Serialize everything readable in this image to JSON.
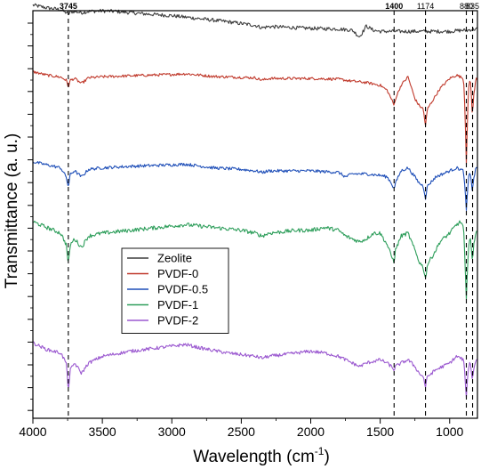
{
  "chart_data": {
    "type": "line",
    "xlabel_main": "Wavelength (cm",
    "xlabel_sup": "-1",
    "xlabel_end": ")",
    "ylabel": "Transmittance (a. u.)",
    "xlim": [
      4000,
      800
    ],
    "x_reversed": true,
    "x_ticks": [
      "4000",
      "3500",
      "3000",
      "2500",
      "2000",
      "1500",
      "1000"
    ],
    "x_tick_values": [
      4000,
      3500,
      3000,
      2500,
      2000,
      1500,
      1000
    ],
    "y_ticks_labeled": false,
    "grid": false,
    "legend_position": "center-left",
    "reference_lines": [
      {
        "x": 3745,
        "label": "3745",
        "bold": true
      },
      {
        "x": 1400,
        "label": "1400",
        "bold": true
      },
      {
        "x": 1174,
        "label": "1174",
        "bold": false
      },
      {
        "x": 880,
        "label": "880",
        "bold": false
      },
      {
        "x": 835,
        "label": "835",
        "bold": false
      }
    ],
    "series": [
      {
        "name": "Zeolite",
        "color": "#3c3c3c",
        "noise": 0.06,
        "points": [
          [
            4000,
            0.95
          ],
          [
            3900,
            0.86
          ],
          [
            3800,
            0.8
          ],
          [
            3760,
            0.7
          ],
          [
            3745,
            0.64
          ],
          [
            3730,
            0.72
          ],
          [
            3700,
            0.74
          ],
          [
            3650,
            0.7
          ],
          [
            3600,
            0.74
          ],
          [
            3500,
            0.76
          ],
          [
            3400,
            0.74
          ],
          [
            3300,
            0.7
          ],
          [
            3200,
            0.66
          ],
          [
            3000,
            0.6
          ],
          [
            2800,
            0.5
          ],
          [
            2600,
            0.4
          ],
          [
            2400,
            0.28
          ],
          [
            2350,
            0.2
          ],
          [
            2300,
            0.24
          ],
          [
            2200,
            0.22
          ],
          [
            2000,
            0.18
          ],
          [
            1800,
            0.16
          ],
          [
            1700,
            0.12
          ],
          [
            1650,
            -0.1
          ],
          [
            1620,
            0.1
          ],
          [
            1600,
            0.26
          ],
          [
            1580,
            0.2
          ],
          [
            1550,
            0.12
          ],
          [
            1500,
            0.08
          ],
          [
            1400,
            0.08
          ],
          [
            1300,
            0.08
          ],
          [
            1200,
            0.08
          ],
          [
            1100,
            0.08
          ],
          [
            1000,
            0.08
          ],
          [
            950,
            0.1
          ],
          [
            900,
            0.12
          ],
          [
            880,
            0.1
          ],
          [
            850,
            0.14
          ],
          [
            800,
            0.16
          ]
        ]
      },
      {
        "name": "PVDF-0",
        "color": "#c0392b",
        "noise": 0.04,
        "points": [
          [
            4000,
            0.3
          ],
          [
            3900,
            0.2
          ],
          [
            3800,
            0.14
          ],
          [
            3760,
            0.05
          ],
          [
            3745,
            -0.15
          ],
          [
            3730,
            0.05
          ],
          [
            3700,
            0.1
          ],
          [
            3650,
            -0.05
          ],
          [
            3620,
            0.05
          ],
          [
            3600,
            0.12
          ],
          [
            3500,
            0.15
          ],
          [
            3300,
            0.18
          ],
          [
            3000,
            0.22
          ],
          [
            2900,
            0.24
          ],
          [
            2700,
            0.16
          ],
          [
            2400,
            0.12
          ],
          [
            2350,
            0.05
          ],
          [
            2300,
            0.1
          ],
          [
            2000,
            0.1
          ],
          [
            1800,
            0.08
          ],
          [
            1700,
            0.02
          ],
          [
            1600,
            -0.02
          ],
          [
            1500,
            -0.1
          ],
          [
            1450,
            -0.25
          ],
          [
            1420,
            -0.5
          ],
          [
            1400,
            -0.7
          ],
          [
            1390,
            -0.5
          ],
          [
            1350,
            -0.1
          ],
          [
            1300,
            0.15
          ],
          [
            1250,
            -0.5
          ],
          [
            1220,
            -0.7
          ],
          [
            1190,
            -0.8
          ],
          [
            1174,
            -1.3
          ],
          [
            1160,
            -0.8
          ],
          [
            1100,
            -0.4
          ],
          [
            1070,
            -0.2
          ],
          [
            1000,
            0.1
          ],
          [
            950,
            0.2
          ],
          [
            900,
            0.1
          ],
          [
            890,
            -0.8
          ],
          [
            880,
            -2.4
          ],
          [
            870,
            -0.8
          ],
          [
            860,
            0.0
          ],
          [
            850,
            0.0
          ],
          [
            840,
            -0.7
          ],
          [
            835,
            -1.1
          ],
          [
            830,
            -0.5
          ],
          [
            810,
            0.1
          ],
          [
            800,
            0.1
          ]
        ]
      },
      {
        "name": "PVDF-0.5",
        "color": "#1f4fb8",
        "noise": 0.05,
        "points": [
          [
            4000,
            0.3
          ],
          [
            3900,
            0.2
          ],
          [
            3800,
            0.1
          ],
          [
            3760,
            -0.2
          ],
          [
            3745,
            -0.55
          ],
          [
            3730,
            -0.1
          ],
          [
            3700,
            0.0
          ],
          [
            3650,
            -0.2
          ],
          [
            3600,
            0.05
          ],
          [
            3500,
            0.1
          ],
          [
            3300,
            0.15
          ],
          [
            3000,
            0.2
          ],
          [
            2900,
            0.22
          ],
          [
            2700,
            0.1
          ],
          [
            2500,
            0.05
          ],
          [
            2400,
            0.0
          ],
          [
            2350,
            -0.05
          ],
          [
            2300,
            0.0
          ],
          [
            2000,
            0.0
          ],
          [
            1800,
            -0.05
          ],
          [
            1750,
            -0.2
          ],
          [
            1700,
            -0.1
          ],
          [
            1600,
            -0.1
          ],
          [
            1500,
            -0.15
          ],
          [
            1450,
            -0.2
          ],
          [
            1420,
            -0.4
          ],
          [
            1400,
            -0.6
          ],
          [
            1390,
            -0.4
          ],
          [
            1350,
            0.0
          ],
          [
            1300,
            0.1
          ],
          [
            1250,
            -0.2
          ],
          [
            1220,
            -0.4
          ],
          [
            1190,
            -0.5
          ],
          [
            1174,
            -0.9
          ],
          [
            1160,
            -0.5
          ],
          [
            1100,
            -0.2
          ],
          [
            1000,
            0.0
          ],
          [
            950,
            0.1
          ],
          [
            900,
            0.0
          ],
          [
            890,
            -0.6
          ],
          [
            880,
            -1.3
          ],
          [
            870,
            -0.6
          ],
          [
            860,
            -0.1
          ],
          [
            850,
            -0.1
          ],
          [
            840,
            -0.5
          ],
          [
            835,
            -0.8
          ],
          [
            830,
            -0.3
          ],
          [
            810,
            0.1
          ],
          [
            800,
            0.1
          ]
        ]
      },
      {
        "name": "PVDF-1",
        "color": "#2e9e5b",
        "noise": 0.07,
        "points": [
          [
            4000,
            0.4
          ],
          [
            3900,
            0.2
          ],
          [
            3800,
            0.0
          ],
          [
            3760,
            -0.4
          ],
          [
            3745,
            -1.1
          ],
          [
            3730,
            -0.4
          ],
          [
            3700,
            -0.2
          ],
          [
            3650,
            -0.5
          ],
          [
            3600,
            -0.1
          ],
          [
            3500,
            0.0
          ],
          [
            3300,
            0.1
          ],
          [
            3000,
            0.25
          ],
          [
            2900,
            0.3
          ],
          [
            2700,
            0.2
          ],
          [
            2500,
            0.1
          ],
          [
            2400,
            0.0
          ],
          [
            2350,
            -0.1
          ],
          [
            2300,
            0.0
          ],
          [
            2100,
            0.1
          ],
          [
            2000,
            0.1
          ],
          [
            1900,
            0.2
          ],
          [
            1800,
            0.1
          ],
          [
            1750,
            -0.1
          ],
          [
            1700,
            -0.2
          ],
          [
            1650,
            -0.3
          ],
          [
            1600,
            -0.2
          ],
          [
            1550,
            0.0
          ],
          [
            1500,
            0.0
          ],
          [
            1450,
            -0.4
          ],
          [
            1420,
            -0.8
          ],
          [
            1400,
            -1.0
          ],
          [
            1390,
            -0.6
          ],
          [
            1350,
            -0.1
          ],
          [
            1300,
            0.0
          ],
          [
            1250,
            -0.6
          ],
          [
            1220,
            -1.0
          ],
          [
            1190,
            -1.2
          ],
          [
            1174,
            -1.6
          ],
          [
            1160,
            -1.1
          ],
          [
            1100,
            -0.6
          ],
          [
            1070,
            -0.3
          ],
          [
            1000,
            0.0
          ],
          [
            950,
            0.3
          ],
          [
            920,
            0.4
          ],
          [
            900,
            0.2
          ],
          [
            890,
            -1.0
          ],
          [
            880,
            -2.4
          ],
          [
            870,
            -1.0
          ],
          [
            860,
            -0.2
          ],
          [
            850,
            -0.2
          ],
          [
            840,
            -0.8
          ],
          [
            835,
            -1.2
          ],
          [
            830,
            -0.5
          ],
          [
            810,
            0.1
          ],
          [
            800,
            0.1
          ]
        ]
      },
      {
        "name": "PVDF-2",
        "color": "#9b59d0",
        "noise": 0.05,
        "points": [
          [
            4000,
            0.6
          ],
          [
            3900,
            0.4
          ],
          [
            3800,
            0.3
          ],
          [
            3760,
            0.0
          ],
          [
            3745,
            -0.8
          ],
          [
            3730,
            -0.2
          ],
          [
            3700,
            0.0
          ],
          [
            3650,
            -0.3
          ],
          [
            3600,
            0.0
          ],
          [
            3500,
            0.2
          ],
          [
            3300,
            0.35
          ],
          [
            3100,
            0.45
          ],
          [
            3000,
            0.5
          ],
          [
            2900,
            0.55
          ],
          [
            2800,
            0.45
          ],
          [
            2600,
            0.3
          ],
          [
            2400,
            0.2
          ],
          [
            2350,
            0.15
          ],
          [
            2300,
            0.2
          ],
          [
            2100,
            0.3
          ],
          [
            2000,
            0.35
          ],
          [
            1900,
            0.3
          ],
          [
            1800,
            0.2
          ],
          [
            1750,
            0.1
          ],
          [
            1700,
            0.0
          ],
          [
            1650,
            -0.1
          ],
          [
            1600,
            0.0
          ],
          [
            1550,
            0.05
          ],
          [
            1500,
            0.1
          ],
          [
            1450,
            0.0
          ],
          [
            1420,
            -0.1
          ],
          [
            1400,
            -0.2
          ],
          [
            1390,
            -0.1
          ],
          [
            1350,
            0.0
          ],
          [
            1300,
            0.1
          ],
          [
            1250,
            -0.1
          ],
          [
            1220,
            -0.3
          ],
          [
            1190,
            -0.4
          ],
          [
            1174,
            -0.7
          ],
          [
            1160,
            -0.4
          ],
          [
            1100,
            -0.2
          ],
          [
            1000,
            0.0
          ],
          [
            950,
            0.2
          ],
          [
            900,
            0.1
          ],
          [
            890,
            -0.4
          ],
          [
            880,
            -1.0
          ],
          [
            870,
            -0.4
          ],
          [
            860,
            0.0
          ],
          [
            850,
            0.0
          ],
          [
            840,
            -0.4
          ],
          [
            835,
            -0.6
          ],
          [
            830,
            -0.2
          ],
          [
            810,
            0.1
          ],
          [
            800,
            0.1
          ]
        ]
      }
    ]
  }
}
